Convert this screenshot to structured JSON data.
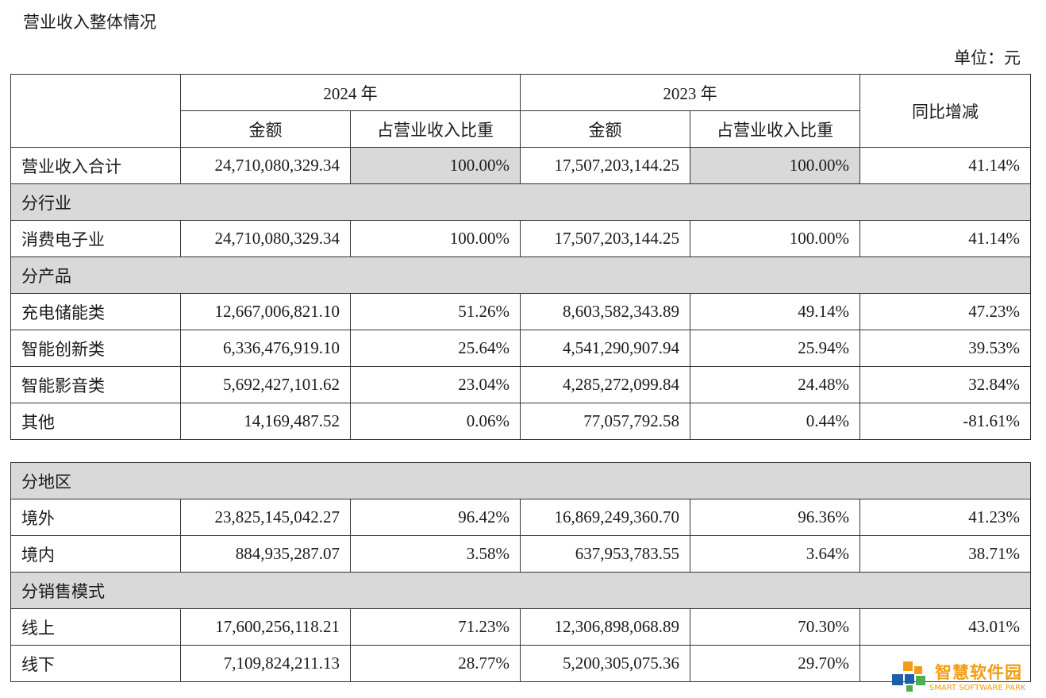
{
  "title": "营业收入整体情况",
  "unit": "单位：元",
  "header": {
    "year_2024": "2024 年",
    "year_2023": "2023 年",
    "amount": "金额",
    "ratio": "占营业收入比重",
    "yoy": "同比增减"
  },
  "total": {
    "label": "营业收入合计",
    "amt_2024": "24,710,080,329.34",
    "pct_2024": "100.00%",
    "amt_2023": "17,507,203,144.25",
    "pct_2023": "100.00%",
    "yoy": "41.14%"
  },
  "sections": {
    "industry": "分行业",
    "product": "分产品",
    "region": "分地区",
    "sales_mode": "分销售模式"
  },
  "rows": [
    {
      "label": "消费电子业",
      "amt_2024": "24,710,080,329.34",
      "pct_2024": "100.00%",
      "amt_2023": "17,507,203,144.25",
      "pct_2023": "100.00%",
      "yoy": "41.14%"
    },
    {
      "label": "充电储能类",
      "amt_2024": "12,667,006,821.10",
      "pct_2024": "51.26%",
      "amt_2023": "8,603,582,343.89",
      "pct_2023": "49.14%",
      "yoy": "47.23%"
    },
    {
      "label": "智能创新类",
      "amt_2024": "6,336,476,919.10",
      "pct_2024": "25.64%",
      "amt_2023": "4,541,290,907.94",
      "pct_2023": "25.94%",
      "yoy": "39.53%"
    },
    {
      "label": "智能影音类",
      "amt_2024": "5,692,427,101.62",
      "pct_2024": "23.04%",
      "amt_2023": "4,285,272,099.84",
      "pct_2023": "24.48%",
      "yoy": "32.84%"
    },
    {
      "label": "其他",
      "amt_2024": "14,169,487.52",
      "pct_2024": "0.06%",
      "amt_2023": "77,057,792.58",
      "pct_2023": "0.44%",
      "yoy": "-81.61%"
    },
    {
      "label": "境外",
      "amt_2024": "23,825,145,042.27",
      "pct_2024": "96.42%",
      "amt_2023": "16,869,249,360.70",
      "pct_2023": "96.36%",
      "yoy": "41.23%"
    },
    {
      "label": "境内",
      "amt_2024": "884,935,287.07",
      "pct_2024": "3.58%",
      "amt_2023": "637,953,783.55",
      "pct_2023": "3.64%",
      "yoy": "38.71%"
    },
    {
      "label": "线上",
      "amt_2024": "17,600,256,118.21",
      "pct_2024": "71.23%",
      "amt_2023": "12,306,898,068.89",
      "pct_2023": "70.30%",
      "yoy": "43.01%"
    },
    {
      "label": "线下",
      "amt_2024": "7,109,824,211.13",
      "pct_2024": "28.77%",
      "amt_2023": "5,200,305,075.36",
      "pct_2023": "29.70%",
      "yoy": ""
    }
  ],
  "watermark": {
    "text": "智慧软件园",
    "sub": "SMART SOFTWARE PARK"
  },
  "colors": {
    "header_shade": "#d9d9d9",
    "border": "#333333",
    "watermark_orange": "#f39c12",
    "watermark_blue": "#1f5fa8",
    "watermark_green": "#4caf50"
  }
}
